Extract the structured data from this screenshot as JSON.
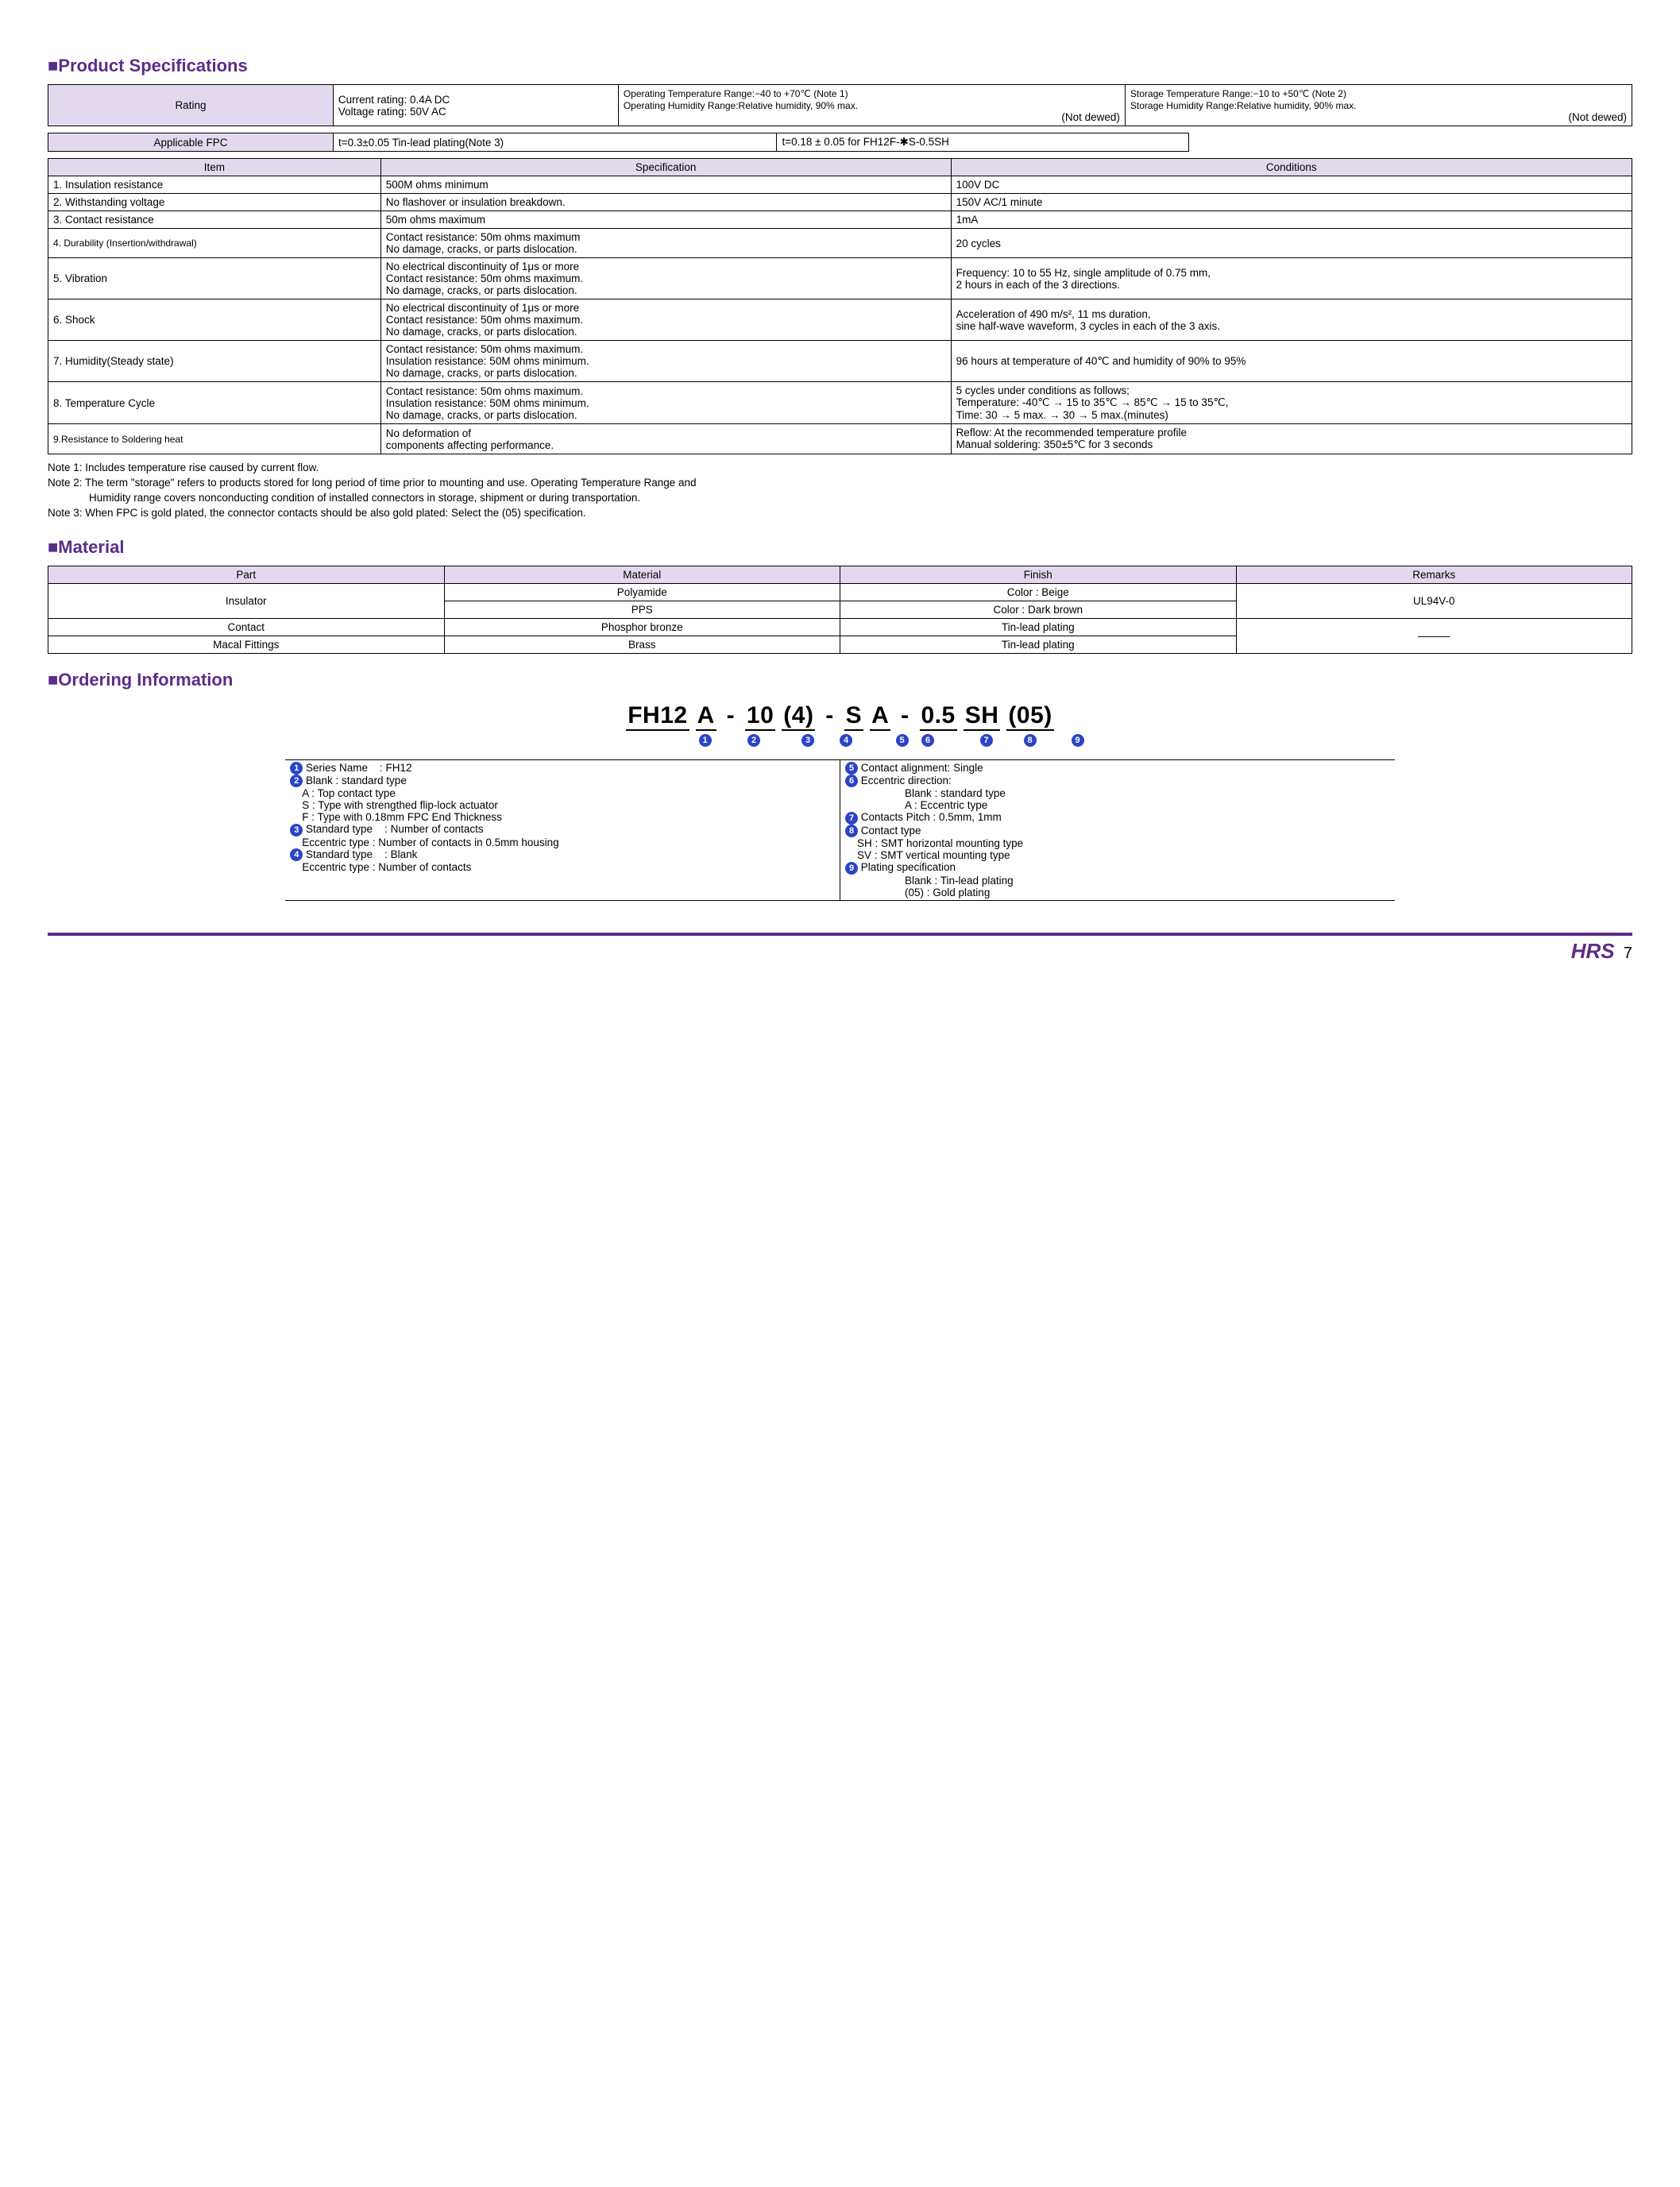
{
  "colors": {
    "accent": "#5b2d89",
    "header_bg": "#e3d9ee",
    "badge_bg": "#2b44c7"
  },
  "sections": {
    "product_spec": "Product Specifications",
    "material": "Material",
    "ordering": "Ordering Information"
  },
  "rating_table": {
    "label": "Rating",
    "current": "Current rating: 0.4A DC",
    "voltage": "Voltage rating: 50V AC",
    "op_temp": "Operating Temperature Range:−40 to +70℃ (Note 1)",
    "op_hum": "Operating Humidity Range:Relative humidity, 90% max.",
    "op_note": "(Not dewed)",
    "st_temp": "Storage Temperature Range:−10 to +50℃ (Note 2)",
    "st_hum": "Storage Humidity Range:Relative humidity, 90% max.",
    "st_note": "(Not dewed)"
  },
  "fpc_table": {
    "label": "Applicable FPC",
    "c1": "t=0.3±0.05  Tin-lead plating(Note 3)",
    "c2": "t=0.18 ± 0.05 for FH12F-✱S-0.5SH"
  },
  "spec_table": {
    "headers": {
      "item": "Item",
      "spec": "Specification",
      "cond": "Conditions"
    },
    "rows": [
      {
        "item": "1. Insulation resistance",
        "spec": "500M ohms minimum",
        "cond": "100V DC"
      },
      {
        "item": "2. Withstanding voltage",
        "spec": "No flashover or insulation breakdown.",
        "cond": "150V AC/1 minute"
      },
      {
        "item": "3. Contact resistance",
        "spec": "50m ohms maximum",
        "cond": "1mA"
      },
      {
        "item": "4. Durability (Insertion/withdrawal)",
        "spec": "Contact resistance: 50m ohms maximum\nNo damage, cracks, or parts dislocation.",
        "cond": "20 cycles"
      },
      {
        "item": "5. Vibration",
        "spec": "No electrical discontinuity of 1μs or more\nContact resistance: 50m ohms maximum.\nNo damage, cracks, or parts dislocation.",
        "cond": "Frequency: 10 to 55 Hz, single amplitude of 0.75 mm,\n2 hours in each of the 3 directions."
      },
      {
        "item": "6. Shock",
        "spec": "No electrical discontinuity of 1μs or more\nContact resistance: 50m ohms maximum.\nNo damage, cracks, or parts dislocation.",
        "cond": "Acceleration of 490 m/s², 11 ms duration,\nsine half-wave waveform, 3 cycles in each of the 3 axis."
      },
      {
        "item": "7. Humidity(Steady state)",
        "spec": "Contact resistance: 50m ohms maximum.\nInsulation resistance: 50M ohms minimum.\nNo damage, cracks, or parts dislocation.",
        "cond": "96 hours at temperature of 40℃ and humidity of 90% to 95%"
      },
      {
        "item": "8. Temperature Cycle",
        "spec": "Contact resistance: 50m ohms maximum.\nInsulation resistance: 50M ohms minimum.\nNo damage, cracks, or parts dislocation.",
        "cond": "5 cycles under conditions as follows;\nTemperature: -40℃ → 15 to 35℃ → 85℃ → 15 to 35℃,\nTime: 30 → 5 max. → 30 → 5 max.(minutes)"
      },
      {
        "item": "9.Resistance to Soldering heat",
        "spec": "No deformation of\ncomponents affecting performance.",
        "cond": "Reflow: At the recommended temperature profile\nManual soldering: 350±5℃ for 3 seconds"
      }
    ]
  },
  "notes": {
    "n1": "Note 1: Includes temperature rise caused by current flow.",
    "n2": "Note 2: The term \"storage\" refers to products stored for long period of time prior to mounting and use. Operating Temperature Range and",
    "n2b": "Humidity range covers nonconducting condition of installed connectors in storage, shipment or during transportation.",
    "n3": "Note 3: When FPC is gold plated, the connector contacts should be also gold plated: Select the (05) specification."
  },
  "material_table": {
    "headers": {
      "part": "Part",
      "material": "Material",
      "finish": "Finish",
      "remarks": "Remarks"
    },
    "rows": {
      "insulator": "Insulator",
      "polyamide": "Polyamide",
      "beige": "Color : Beige",
      "pps": "PPS",
      "darkbrown": "Color : Dark brown",
      "ul": "UL94V-0",
      "contact": "Contact",
      "pb": "Phosphor bronze",
      "tlp1": "Tin-lead plating",
      "macal": "Macal Fittings",
      "brass": "Brass",
      "tlp2": "Tin-lead plating",
      "dash": "———"
    }
  },
  "ordering": {
    "parts": [
      "FH12",
      "A",
      "-",
      "10",
      "(4)",
      "-",
      "S",
      "A",
      "-",
      "0.5",
      "SH",
      "(05)"
    ],
    "nums": [
      "1",
      "2",
      "3",
      "4",
      "5",
      "6",
      "7",
      "8",
      "9"
    ],
    "left": [
      "❶ Series Name    : FH12",
      "❷ Blank : standard type",
      "    A : Top contact type",
      "    S : Type with strengthed flip-lock actuator",
      "    F : Type with 0.18mm FPC End Thickness",
      "❸ Standard type    : Number of contacts",
      "    Eccentric type   : Number of contacts in 0.5mm housing",
      "❹ Standard type    : Blank",
      "    Eccentric type   : Number of contacts"
    ],
    "right": [
      "❺ Contact alignment: Single",
      "❻ Eccentric direction:",
      "                    Blank : standard type",
      "                    A : Eccentric type",
      "❼ Contacts Pitch   : 0.5mm, 1mm",
      "❽ Contact type",
      "    SH : SMT horizontal mounting type",
      "    SV : SMT vertical mounting type",
      "❾ Plating specification",
      "                    Blank : Tin-lead plating",
      "                    (05)   : Gold plating"
    ]
  },
  "footer": {
    "brand": "HRS",
    "page": "7"
  }
}
